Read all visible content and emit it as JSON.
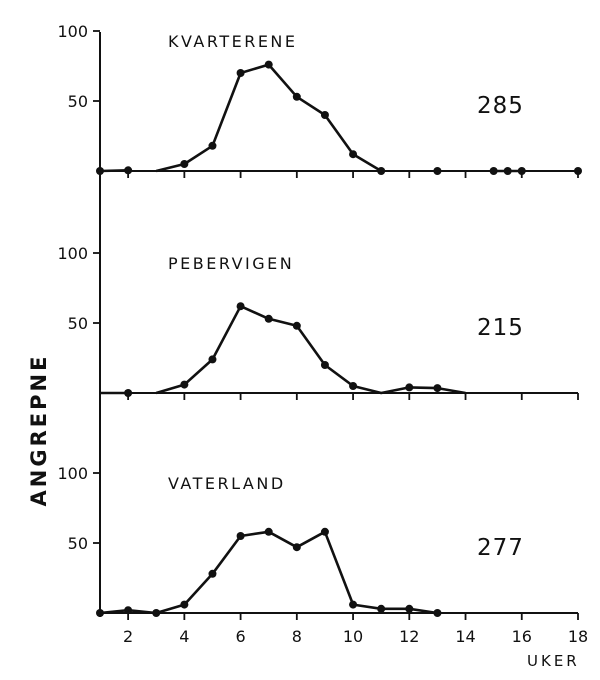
{
  "chart_data": {
    "type": "line",
    "ylabel": "ANGREPNE",
    "xlabel": "UKER",
    "x_ticks": [
      2,
      4,
      6,
      8,
      10,
      12,
      14,
      16,
      18
    ],
    "xlim": [
      1,
      18
    ],
    "panels": [
      {
        "title": "KVARTERENE",
        "total": "285",
        "ylim": [
          0,
          100
        ],
        "y_ticks": [
          50,
          100
        ],
        "line_segments": [
          [
            [
              1,
              0
            ],
            [
              2,
              0.5
            ]
          ],
          [
            [
              3,
              0
            ],
            [
              4,
              5
            ],
            [
              5,
              18
            ],
            [
              6,
              70
            ],
            [
              7,
              76
            ],
            [
              8,
              53
            ],
            [
              9,
              40
            ],
            [
              10,
              12
            ],
            [
              11,
              0
            ]
          ],
          [
            [
              15,
              0
            ],
            [
              16,
              0
            ]
          ]
        ],
        "points": [
          [
            1,
            0
          ],
          [
            2,
            0.5
          ],
          [
            4,
            5
          ],
          [
            5,
            18
          ],
          [
            6,
            70
          ],
          [
            7,
            76
          ],
          [
            8,
            53
          ],
          [
            9,
            40
          ],
          [
            10,
            12
          ],
          [
            11,
            0
          ],
          [
            13,
            0
          ],
          [
            15,
            0
          ],
          [
            15.5,
            0
          ],
          [
            16,
            0
          ],
          [
            18,
            0
          ]
        ]
      },
      {
        "title": "PEBERVIGEN",
        "total": "215",
        "ylim": [
          0,
          100
        ],
        "y_ticks": [
          50,
          100
        ],
        "line_segments": [
          [
            [
              1,
              0
            ],
            [
              2,
              0
            ]
          ],
          [
            [
              3,
              0
            ],
            [
              4,
              6
            ],
            [
              5,
              24
            ],
            [
              6,
              62
            ],
            [
              7,
              53
            ],
            [
              8,
              48
            ],
            [
              9,
              20
            ],
            [
              10,
              5
            ],
            [
              11,
              0
            ],
            [
              12,
              4
            ],
            [
              13,
              3.5
            ],
            [
              14,
              0
            ]
          ]
        ],
        "points": [
          [
            2,
            0
          ],
          [
            4,
            6
          ],
          [
            5,
            24
          ],
          [
            6,
            62
          ],
          [
            7,
            53
          ],
          [
            8,
            48
          ],
          [
            9,
            20
          ],
          [
            10,
            5
          ],
          [
            12,
            4
          ],
          [
            13,
            3.5
          ]
        ]
      },
      {
        "title": "VATERLAND",
        "total": "277",
        "ylim": [
          0,
          100
        ],
        "y_ticks": [
          50,
          100
        ],
        "line_segments": [
          [
            [
              1,
              0
            ],
            [
              2,
              2
            ],
            [
              3,
              0
            ],
            [
              4,
              6
            ],
            [
              5,
              28
            ],
            [
              6,
              55
            ],
            [
              7,
              58
            ],
            [
              8,
              47
            ],
            [
              9,
              58
            ],
            [
              10,
              6
            ],
            [
              11,
              3
            ],
            [
              12,
              3
            ],
            [
              13,
              0
            ]
          ]
        ],
        "points": [
          [
            1,
            0
          ],
          [
            2,
            2
          ],
          [
            3,
            0
          ],
          [
            4,
            6
          ],
          [
            5,
            28
          ],
          [
            6,
            55
          ],
          [
            7,
            58
          ],
          [
            8,
            47
          ],
          [
            9,
            58
          ],
          [
            10,
            6
          ],
          [
            11,
            3
          ],
          [
            12,
            3
          ],
          [
            13,
            0
          ]
        ]
      }
    ]
  }
}
